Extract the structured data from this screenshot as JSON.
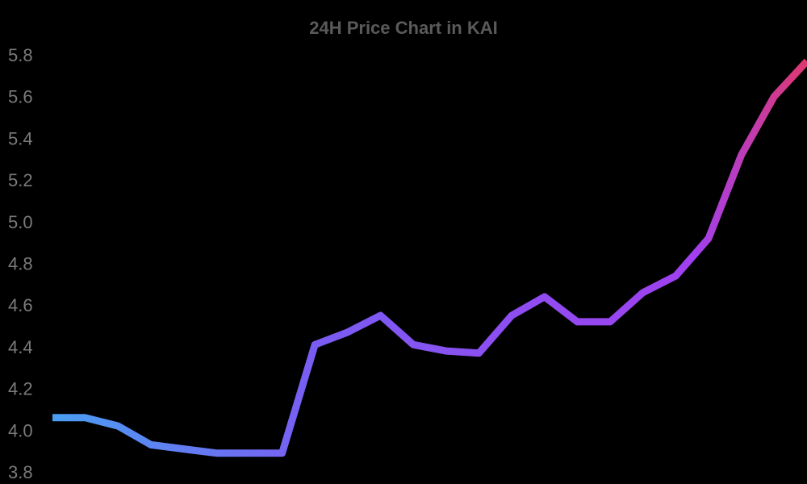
{
  "chart_data": {
    "type": "line",
    "title": "24H Price Chart in KAI",
    "xlabel": "",
    "ylabel": "",
    "ylim": [
      3.8,
      5.8
    ],
    "y_ticks": [
      "3.8",
      "4.0",
      "4.2",
      "4.4",
      "4.6",
      "4.8",
      "5.0",
      "5.2",
      "5.4",
      "5.6",
      "5.8"
    ],
    "grid": false,
    "legend": "none",
    "series": [
      {
        "values": [
          4.06,
          4.06,
          4.02,
          3.93,
          3.91,
          3.89,
          3.89,
          3.89,
          4.41,
          4.47,
          4.55,
          4.41,
          4.38,
          4.37,
          4.55,
          4.64,
          4.52,
          4.52,
          4.66,
          4.74,
          4.92,
          5.32,
          5.6,
          5.77
        ]
      }
    ]
  },
  "colors": {
    "background": "#000000",
    "title": "#5a5a5a",
    "tick_label": "#7a7a7a",
    "line_gradient": [
      "#4a9ef2",
      "#7a5cf2",
      "#a040f0",
      "#e0386e"
    ]
  }
}
